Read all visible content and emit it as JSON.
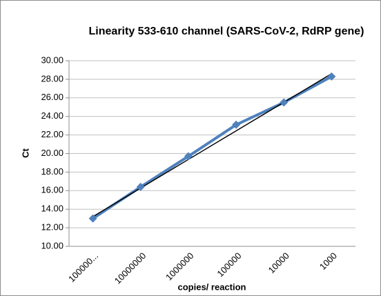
{
  "chart_data": {
    "type": "line",
    "title": "Linearity 533-610 channel (SARS-CoV-2, RdRP gene)",
    "x_label": "copies/ reaction",
    "y_label": "Ct",
    "categories": [
      "100000...",
      "10000000",
      "1000000",
      "100000",
      "10000",
      "1000"
    ],
    "series": [
      {
        "color": "#4f81bd",
        "values": [
          13.0,
          16.4,
          19.7,
          23.1,
          25.5,
          28.3
        ]
      }
    ],
    "trendline": {
      "color": "#000000",
      "values": [
        13.2,
        28.6
      ]
    },
    "ylim": [
      10,
      30
    ],
    "yticks": [
      {
        "value": 10,
        "label": "10.00"
      },
      {
        "value": 12,
        "label": "12.00"
      },
      {
        "value": 14,
        "label": "14.00"
      },
      {
        "value": 16,
        "label": "16.00"
      },
      {
        "value": 18,
        "label": "18.00"
      },
      {
        "value": 20,
        "label": "20.00"
      },
      {
        "value": 22,
        "label": "22.00"
      },
      {
        "value": 24,
        "label": "24.00"
      },
      {
        "value": 26,
        "label": "26.00"
      },
      {
        "value": 28,
        "label": "28.00"
      },
      {
        "value": 30,
        "label": "30.00"
      }
    ],
    "grid": true
  }
}
